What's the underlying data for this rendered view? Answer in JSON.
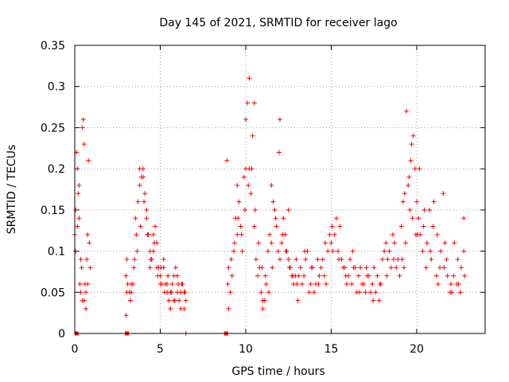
{
  "chart_data": {
    "type": "scatter",
    "title": "Day 145 of 2021, SRMTID for receiver lago",
    "xlabel": "GPS time / hours",
    "ylabel": "SRMTID / TECUs",
    "xlim": [
      0,
      24
    ],
    "ylim": [
      0,
      0.35
    ],
    "xticks": [
      0,
      5,
      10,
      15,
      20
    ],
    "xtick_labels": [
      "0",
      "5",
      "10",
      "15",
      "20"
    ],
    "yticks": [
      0,
      0.05,
      0.1,
      0.15,
      0.2,
      0.25,
      0.3,
      0.35
    ],
    "ytick_labels": [
      "0",
      "0.05",
      "0.1",
      "0.15",
      "0.2",
      "0.25",
      "0.3",
      "0.35"
    ],
    "grid": true,
    "marker": "+",
    "color": "#ff0000",
    "series": [
      {
        "name": "SRMTID",
        "x": [
          0.0,
          0.05,
          0.1,
          0.15,
          0.2,
          0.25,
          0.3,
          0.35,
          0.4,
          0.45,
          0.5,
          0.55,
          0.6,
          0.65,
          0.7,
          0.75,
          0.8,
          0.85,
          0.9,
          0.05,
          0.15,
          0.25,
          0.35,
          0.45,
          0.55,
          0.65,
          0.75,
          3.0,
          3.1,
          3.2,
          3.3,
          3.4,
          3.5,
          3.6,
          3.7,
          3.8,
          3.9,
          4.0,
          4.1,
          4.2,
          4.3,
          4.4,
          4.5,
          4.6,
          4.7,
          4.8,
          4.9,
          5.0,
          5.1,
          5.2,
          5.3,
          5.4,
          5.5,
          5.6,
          5.7,
          5.8,
          5.9,
          6.0,
          6.1,
          6.2,
          6.3,
          6.4,
          6.5,
          3.05,
          3.25,
          3.45,
          3.65,
          3.85,
          4.05,
          4.25,
          4.45,
          4.65,
          4.85,
          5.05,
          5.25,
          5.45,
          5.65,
          5.85,
          6.05,
          6.25,
          6.45,
          3.05,
          3.3,
          3.55,
          3.8,
          4.0,
          4.2,
          4.4,
          4.6,
          4.8,
          5.0,
          5.2,
          5.4,
          5.6,
          5.8,
          6.0,
          6.2,
          6.4,
          8.9,
          9.0,
          9.1,
          9.2,
          9.3,
          9.4,
          9.5,
          9.6,
          9.7,
          9.8,
          9.9,
          10.0,
          10.1,
          10.2,
          10.3,
          10.4,
          10.5,
          10.6,
          10.7,
          10.8,
          10.9,
          11.0,
          11.1,
          11.2,
          11.3,
          11.4,
          11.5,
          11.6,
          11.7,
          11.8,
          11.9,
          12.0,
          12.1,
          12.2,
          12.3,
          12.4,
          12.5,
          12.6,
          12.7,
          12.8,
          8.95,
          9.15,
          9.35,
          9.55,
          9.75,
          9.95,
          10.15,
          10.35,
          10.55,
          10.75,
          10.95,
          11.15,
          11.35,
          11.55,
          11.75,
          11.95,
          12.15,
          12.35,
          12.55,
          12.75,
          9.0,
          9.5,
          10.0,
          10.2,
          10.5,
          11.0,
          11.5,
          12.0,
          12.5,
          12.9,
          13.0,
          13.2,
          13.4,
          13.6,
          13.8,
          14.0,
          14.2,
          14.4,
          14.6,
          14.8,
          15.0,
          15.2,
          15.4,
          15.6,
          15.8,
          16.0,
          16.2,
          16.4,
          16.6,
          16.8,
          17.0,
          17.2,
          17.4,
          17.6,
          17.8,
          18.0,
          18.2,
          18.4,
          18.6,
          18.8,
          19.0,
          12.95,
          13.1,
          13.3,
          13.5,
          13.7,
          13.9,
          14.1,
          14.3,
          14.5,
          14.7,
          14.9,
          15.1,
          15.3,
          15.5,
          15.7,
          15.9,
          16.1,
          16.3,
          16.5,
          16.7,
          16.9,
          17.1,
          17.3,
          17.5,
          17.7,
          17.9,
          18.1,
          18.3,
          18.5,
          18.7,
          18.9,
          13.05,
          13.45,
          13.85,
          14.25,
          14.65,
          15.05,
          15.45,
          15.85,
          16.25,
          16.65,
          17.05,
          17.45,
          17.85,
          18.25,
          18.65,
          19.1,
          19.2,
          19.3,
          19.4,
          19.5,
          19.6,
          19.7,
          19.8,
          19.9,
          20.0,
          20.1,
          20.2,
          20.4,
          20.6,
          20.8,
          21.0,
          21.2,
          21.4,
          21.6,
          21.8,
          22.0,
          22.2,
          22.4,
          22.6,
          22.8,
          19.15,
          19.35,
          19.55,
          19.75,
          19.95,
          20.15,
          20.35,
          20.55,
          20.75,
          20.95,
          21.15,
          21.35,
          21.55,
          21.75,
          21.95,
          22.15,
          22.35,
          22.55,
          22.75,
          19.25,
          19.65,
          20.05,
          20.45,
          20.85,
          21.25,
          21.65,
          22.05,
          22.45,
          22.75,
          3.0,
          6.5
        ],
        "y": [
          0.12,
          0.15,
          0.22,
          0.2,
          0.17,
          0.14,
          0.06,
          0.05,
          0.08,
          0.25,
          0.26,
          0.23,
          0.06,
          0.05,
          0.09,
          0.12,
          0.21,
          0.11,
          0.08,
          0.1,
          0.13,
          0.18,
          0.09,
          0.04,
          0.04,
          0.03,
          0.06,
          0.07,
          0.06,
          0.05,
          0.05,
          0.06,
          0.09,
          0.12,
          0.16,
          0.18,
          0.19,
          0.2,
          0.17,
          0.14,
          0.12,
          0.1,
          0.09,
          0.12,
          0.13,
          0.11,
          0.08,
          0.07,
          0.06,
          0.09,
          0.06,
          0.05,
          0.04,
          0.03,
          0.06,
          0.07,
          0.08,
          0.05,
          0.04,
          0.03,
          0.06,
          0.05,
          0.04,
          0.05,
          0.04,
          0.08,
          0.1,
          0.13,
          0.16,
          0.12,
          0.09,
          0.11,
          0.07,
          0.08,
          0.05,
          0.07,
          0.05,
          0.04,
          0.06,
          0.06,
          0.05,
          0.09,
          0.06,
          0.14,
          0.2,
          0.19,
          0.15,
          0.08,
          0.1,
          0.08,
          0.06,
          0.08,
          0.06,
          0.05,
          0.04,
          0.07,
          0.05,
          0.03,
          0.21,
          0.08,
          0.05,
          0.07,
          0.1,
          0.14,
          0.12,
          0.16,
          0.13,
          0.1,
          0.19,
          0.26,
          0.28,
          0.2,
          0.17,
          0.24,
          0.13,
          0.09,
          0.07,
          0.08,
          0.05,
          0.03,
          0.04,
          0.06,
          0.1,
          0.12,
          0.18,
          0.16,
          0.15,
          0.13,
          0.1,
          0.09,
          0.11,
          0.14,
          0.12,
          0.1,
          0.09,
          0.08,
          0.07,
          0.06,
          0.06,
          0.09,
          0.11,
          0.14,
          0.12,
          0.15,
          0.18,
          0.2,
          0.15,
          0.11,
          0.08,
          0.07,
          0.05,
          0.08,
          0.14,
          0.22,
          0.12,
          0.1,
          0.08,
          0.07,
          0.03,
          0.18,
          0.2,
          0.31,
          0.28,
          0.04,
          0.11,
          0.26,
          0.15,
          0.07,
          0.06,
          0.08,
          0.07,
          0.1,
          0.06,
          0.05,
          0.09,
          0.08,
          0.07,
          0.1,
          0.11,
          0.12,
          0.1,
          0.09,
          0.08,
          0.07,
          0.06,
          0.08,
          0.07,
          0.06,
          0.05,
          0.07,
          0.06,
          0.05,
          0.04,
          0.09,
          0.11,
          0.1,
          0.12,
          0.08,
          0.07,
          0.09,
          0.07,
          0.06,
          0.09,
          0.05,
          0.08,
          0.06,
          0.07,
          0.09,
          0.06,
          0.12,
          0.1,
          0.14,
          0.13,
          0.08,
          0.06,
          0.09,
          0.08,
          0.05,
          0.08,
          0.06,
          0.07,
          0.05,
          0.08,
          0.07,
          0.06,
          0.1,
          0.09,
          0.08,
          0.11,
          0.09,
          0.04,
          0.1,
          0.08,
          0.06,
          0.11,
          0.13,
          0.09,
          0.07,
          0.1,
          0.05,
          0.08,
          0.04,
          0.06,
          0.07,
          0.09,
          0.13,
          0.16,
          0.17,
          0.27,
          0.18,
          0.15,
          0.23,
          0.24,
          0.2,
          0.16,
          0.14,
          0.12,
          0.13,
          0.11,
          0.1,
          0.16,
          0.12,
          0.1,
          0.08,
          0.07,
          0.06,
          0.11,
          0.09,
          0.08,
          0.07,
          0.09,
          0.11,
          0.19,
          0.14,
          0.12,
          0.2,
          0.1,
          0.08,
          0.15,
          0.13,
          0.07,
          0.08,
          0.17,
          0.09,
          0.05,
          0.07,
          0.06,
          0.05,
          0.14,
          0.08,
          0.21,
          0.12,
          0.15,
          0.09,
          0.06,
          0.11,
          0.05,
          0.06,
          0.1,
          0.022,
          0.0
        ]
      }
    ],
    "markers_at_zero": [
      0.1,
      3.05,
      8.85
    ]
  }
}
